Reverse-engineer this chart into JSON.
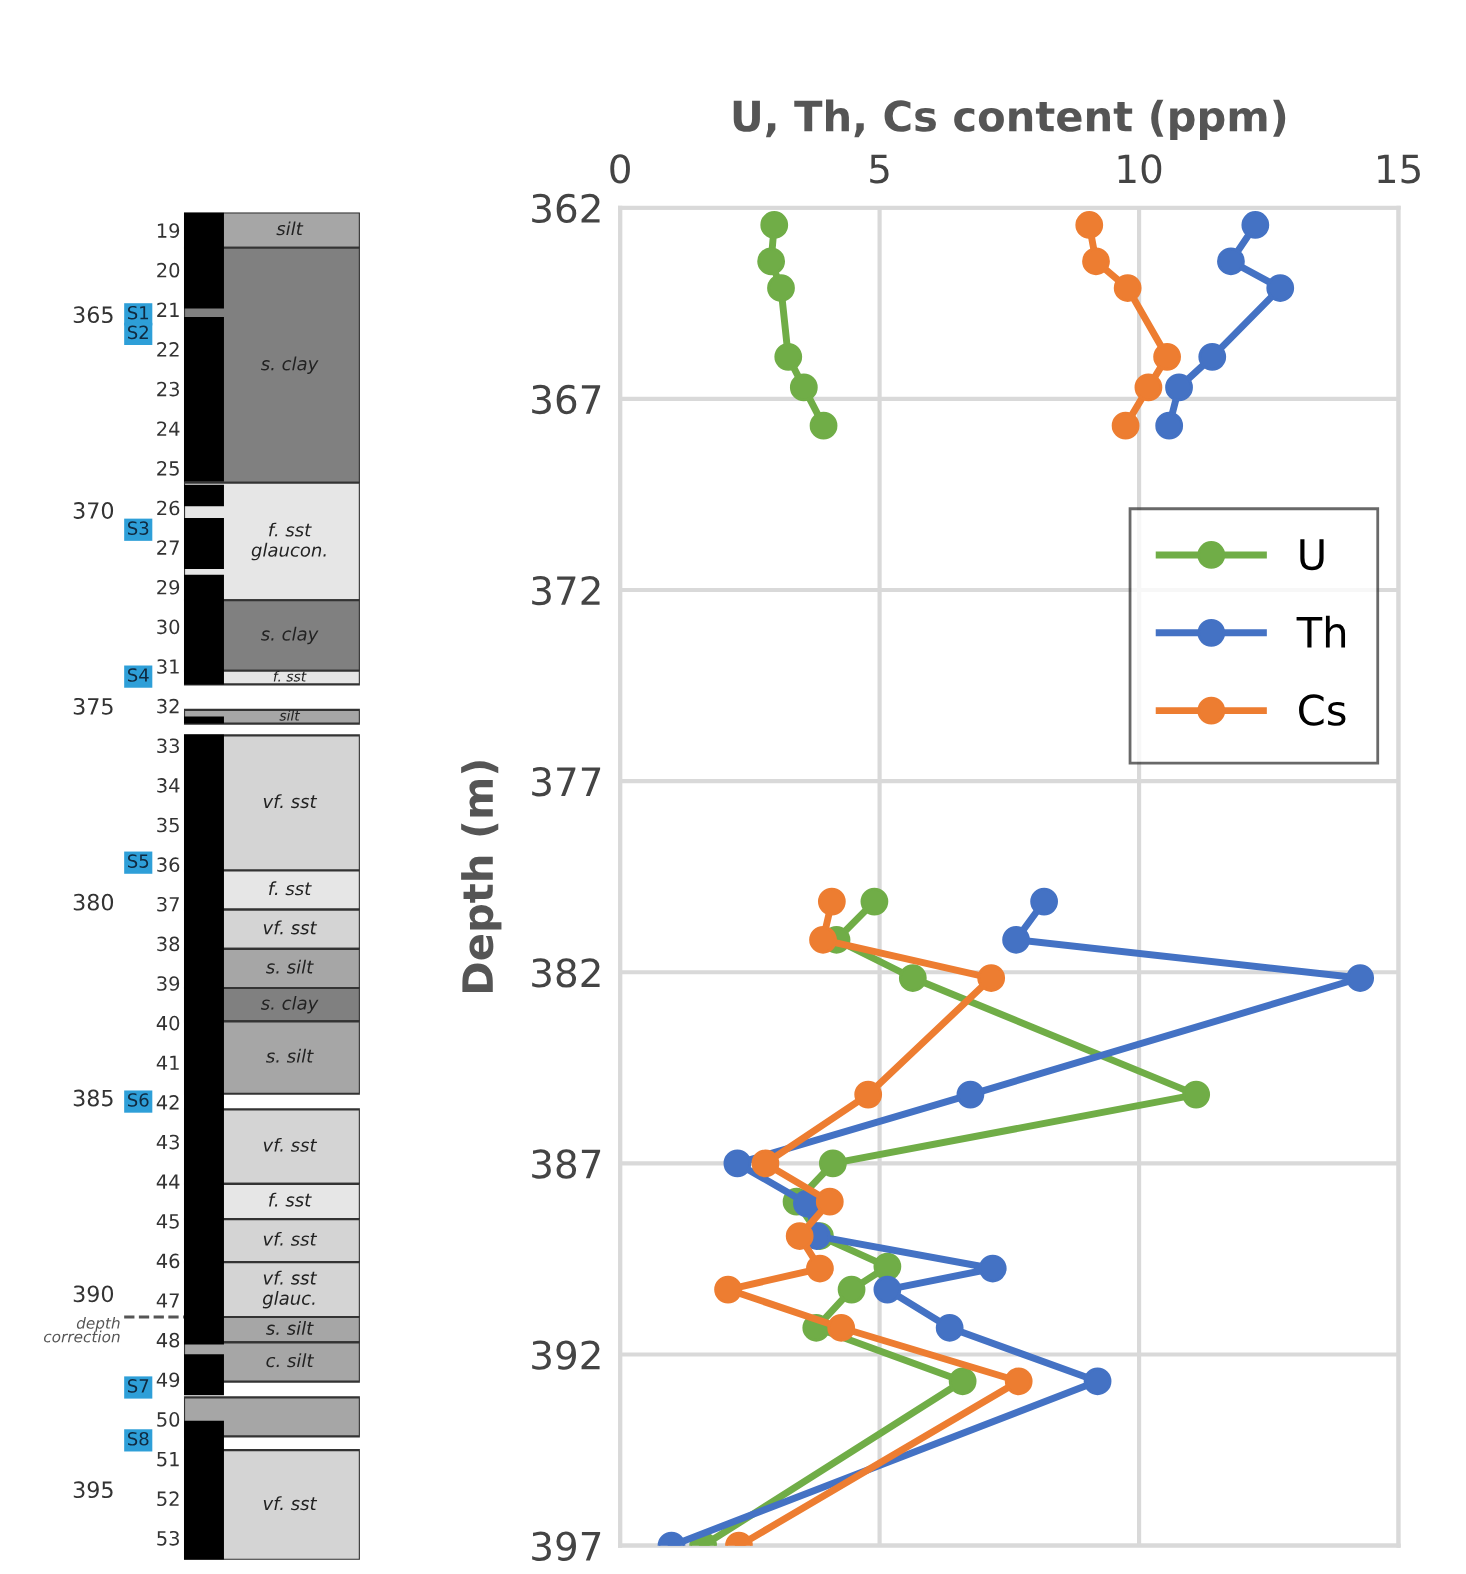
{
  "chart_data": [
    {
      "type": "bar",
      "categories": [
        null
      ],
      "ylim": [
        396.8,
        362.4
      ],
      "yticks": [
        365,
        370,
        375,
        380,
        385,
        390,
        395
      ],
      "series": [
        {
          "color": "#000000",
          "values": [
            2.45
          ],
          "base": [
            362.4
          ]
        },
        {
          "color": "#000000",
          "values": [
            4.2
          ],
          "base": [
            365.07
          ]
        },
        {
          "color": "#000000",
          "values": [
            0.55
          ],
          "base": [
            369.35
          ]
        },
        {
          "color": "#000000",
          "values": [
            1.3
          ],
          "base": [
            370.2
          ]
        },
        {
          "color": "#000000",
          "values": [
            2.8
          ],
          "base": [
            371.65
          ]
        },
        {
          "color": "#000000",
          "values": [
            0.18
          ],
          "base": [
            375.27
          ]
        },
        {
          "color": "#000000",
          "values": [
            15.57
          ],
          "base": [
            375.73
          ]
        },
        {
          "color": "#000000",
          "values": [
            1.05
          ],
          "base": [
            391.55
          ]
        },
        {
          "color": "#000000",
          "values": [
            3.55
          ],
          "base": [
            393.25
          ]
        }
      ],
      "bands": [
        {
          "axis": "y",
          "from": 362.4,
          "to": 363.3,
          "label": "silt",
          "color": "#a6a6a6"
        },
        {
          "axis": "y",
          "from": 363.3,
          "to": 369.3,
          "label": "s. clay",
          "color": "#808080"
        },
        {
          "axis": "y",
          "from": 369.3,
          "to": 372.3,
          "label": "f. sst\nglaucon.",
          "color": "#e6e6e6"
        },
        {
          "axis": "y",
          "from": 372.3,
          "to": 374.1,
          "label": "s. clay",
          "color": "#808080"
        },
        {
          "axis": "y",
          "from": 374.1,
          "to": 374.45,
          "label": "f. sst",
          "color": "#e6e6e6"
        },
        {
          "axis": "y",
          "from": 375.1,
          "to": 375.45,
          "label": "silt",
          "color": "#a6a6a6"
        },
        {
          "axis": "y",
          "from": 375.75,
          "to": 379.2,
          "label": "vf. sst",
          "color": "#d4d4d4"
        },
        {
          "axis": "y",
          "from": 379.2,
          "to": 380.2,
          "label": "f. sst",
          "color": "#e6e6e6"
        },
        {
          "axis": "y",
          "from": 380.2,
          "to": 381.2,
          "label": "vf. sst",
          "color": "#d4d4d4"
        },
        {
          "axis": "y",
          "from": 381.2,
          "to": 382.2,
          "label": "s. silt",
          "color": "#a6a6a6"
        },
        {
          "axis": "y",
          "from": 382.2,
          "to": 383.05,
          "label": "s. clay",
          "color": "#808080"
        },
        {
          "axis": "y",
          "from": 383.05,
          "to": 384.9,
          "label": "s. silt",
          "color": "#a6a6a6"
        },
        {
          "axis": "y",
          "from": 385.3,
          "to": 387.2,
          "label": "vf. sst",
          "color": "#d4d4d4"
        },
        {
          "axis": "y",
          "from": 387.2,
          "to": 388.1,
          "label": "f. sst",
          "color": "#e6e6e6"
        },
        {
          "axis": "y",
          "from": 388.1,
          "to": 389.2,
          "label": "vf. sst",
          "color": "#d4d4d4"
        },
        {
          "axis": "y",
          "from": 389.2,
          "to": 390.6,
          "label": "vf. sst\nglauc.",
          "color": "#d4d4d4"
        },
        {
          "axis": "y",
          "from": 390.6,
          "to": 391.25,
          "label": "s. silt",
          "color": "#a6a6a6"
        },
        {
          "axis": "y",
          "from": 391.25,
          "to": 392.25,
          "label": "c. silt",
          "color": "#a6a6a6"
        },
        {
          "axis": "y",
          "from": 392.65,
          "to": 393.65,
          "color": "#a6a6a6"
        },
        {
          "axis": "y",
          "from": 394.0,
          "to": 396.8,
          "label": "vf. sst",
          "color": "#d4d4d4"
        }
      ],
      "ref_lines": [
        {
          "axis": "y",
          "value": 365.0,
          "label": "S1",
          "color": "#2e9fd8",
          "line_style": "solid"
        },
        {
          "axis": "y",
          "value": 365.5,
          "label": "S2",
          "color": "#2e9fd8",
          "line_style": "solid"
        },
        {
          "axis": "y",
          "value": 370.5,
          "label": "S3",
          "color": "#2e9fd8",
          "line_style": "solid"
        },
        {
          "axis": "y",
          "value": 374.25,
          "label": "S4",
          "color": "#2e9fd8",
          "line_style": "solid"
        },
        {
          "axis": "y",
          "value": 379.0,
          "label": "S5",
          "color": "#2e9fd8",
          "line_style": "solid"
        },
        {
          "axis": "y",
          "value": 385.1,
          "label": "S6",
          "color": "#2e9fd8",
          "line_style": "solid"
        },
        {
          "axis": "y",
          "value": 392.4,
          "label": "S7",
          "color": "#2e9fd8",
          "line_style": "solid"
        },
        {
          "axis": "y",
          "value": 393.75,
          "label": "S8",
          "color": "#2e9fd8",
          "line_style": "solid"
        },
        {
          "axis": "y",
          "value": 390.6,
          "label": "depth\ncorrection",
          "color": "#555555",
          "line_style": "dashed"
        }
      ],
      "annotations": [
        "19",
        "20",
        "21",
        "22",
        "23",
        "24",
        "25",
        "26",
        "27",
        "29",
        "30",
        "31",
        "32",
        "33",
        "34",
        "35",
        "36",
        "37",
        "38",
        "39",
        "40",
        "41",
        "42",
        "43",
        "44",
        "45",
        "46",
        "47",
        "48",
        "49",
        "50",
        "51",
        "52",
        "53"
      ]
    },
    {
      "type": "line",
      "xlabel": "U, Th, Cs content (ppm)",
      "ylabel": "Depth (m)",
      "xlim": [
        0,
        15
      ],
      "xticks": [
        0,
        5,
        10,
        15
      ],
      "ylim": [
        397,
        362
      ],
      "yticks": [
        362,
        367,
        372,
        377,
        382,
        387,
        392,
        397
      ],
      "grid": true,
      "legend": "right",
      "marker": "circle",
      "line_style": "solid",
      "series": [
        {
          "name": "U",
          "color": "#70ad47",
          "x": [
            2.97,
            2.91,
            3.1,
            3.24,
            3.54,
            3.92,
            null,
            4.9,
            4.17,
            5.64,
            11.1,
            4.1,
            3.4,
            3.85,
            5.15,
            4.46,
            3.78,
            6.6,
            1.6
          ],
          "values": [
            362.45,
            363.4,
            364.1,
            365.9,
            366.7,
            367.7,
            null,
            380.15,
            381.15,
            382.15,
            385.2,
            387.0,
            388.0,
            388.9,
            389.7,
            390.3,
            391.3,
            392.7,
            397.0
          ]
        },
        {
          "name": "Th",
          "color": "#4472c4",
          "x": [
            12.24,
            11.77,
            12.72,
            11.41,
            10.77,
            10.58,
            null,
            8.17,
            7.63,
            14.26,
            6.75,
            2.26,
            3.6,
            3.79,
            7.18,
            5.15,
            6.35,
            9.2,
            0.99
          ],
          "values": [
            362.45,
            363.4,
            364.1,
            365.9,
            366.7,
            367.7,
            null,
            380.15,
            381.15,
            382.15,
            385.2,
            387.0,
            388.05,
            388.9,
            389.75,
            390.3,
            391.3,
            392.7,
            397.0
          ]
        },
        {
          "name": "Cs",
          "color": "#ed7d31",
          "x": [
            9.04,
            9.17,
            9.78,
            10.54,
            10.18,
            9.74,
            null,
            4.08,
            3.91,
            7.15,
            4.78,
            2.8,
            4.04,
            3.46,
            3.85,
            2.08,
            4.26,
            7.68,
            2.29
          ],
          "values": [
            362.45,
            363.4,
            364.1,
            365.9,
            366.7,
            367.7,
            null,
            380.15,
            381.15,
            382.15,
            385.2,
            387.0,
            388.0,
            388.9,
            389.75,
            390.3,
            391.3,
            392.7,
            397.0
          ]
        }
      ]
    }
  ]
}
